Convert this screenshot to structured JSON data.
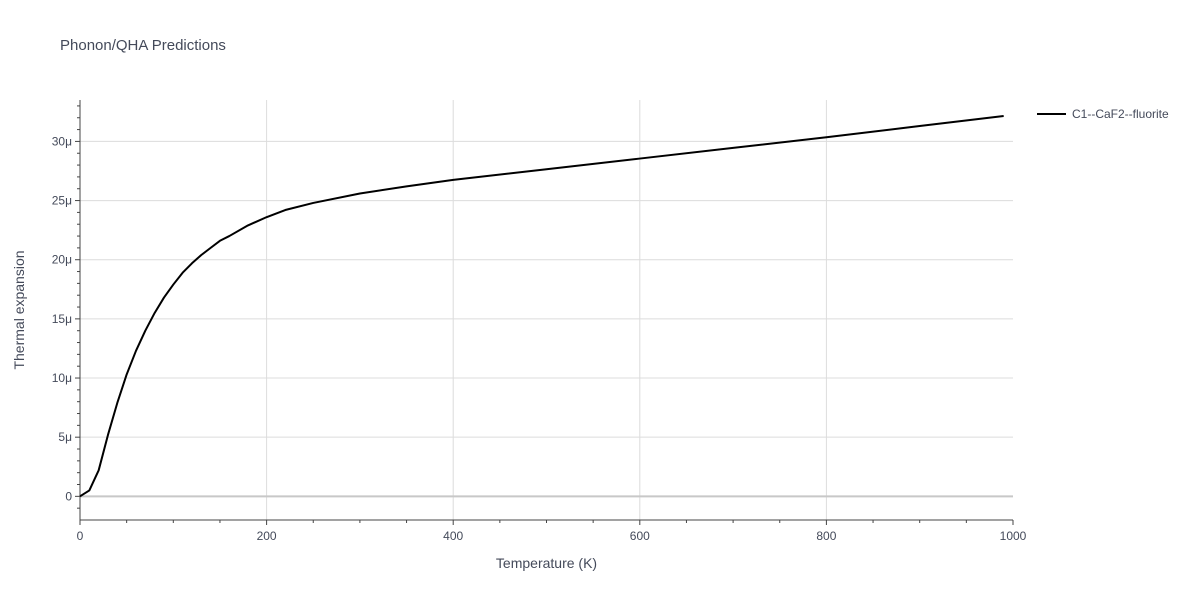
{
  "chart_data": {
    "type": "line",
    "title": "Phonon/QHA Predictions",
    "xlabel": "Temperature (K)",
    "ylabel": "Thermal expansion",
    "xlim": [
      0,
      1000
    ],
    "ylim": [
      -2e-06,
      3.35e-05
    ],
    "x_ticks": [
      0,
      200,
      400,
      600,
      800,
      1000
    ],
    "x_tick_labels": [
      "0",
      "200",
      "400",
      "600",
      "800",
      "1000"
    ],
    "y_ticks": [
      0,
      5e-06,
      1e-05,
      1.5e-05,
      2e-05,
      2.5e-05,
      3e-05
    ],
    "y_tick_labels": [
      "0",
      "5μ",
      "10μ",
      "15μ",
      "20μ",
      "25μ",
      "30μ"
    ],
    "grid": true,
    "legend_position": "top-right",
    "series": [
      {
        "name": "C1--CaF2--fluorite",
        "color": "#000000",
        "x": [
          0,
          10,
          20,
          30,
          40,
          50,
          60,
          70,
          80,
          90,
          100,
          110,
          120,
          130,
          140,
          150,
          160,
          180,
          200,
          220,
          250,
          300,
          350,
          400,
          500,
          600,
          700,
          800,
          900,
          990
        ],
        "y": [
          0.0,
          5e-07,
          2.2e-06,
          5.2e-06,
          7.9e-06,
          1.03e-05,
          1.23e-05,
          1.4e-05,
          1.55e-05,
          1.68e-05,
          1.79e-05,
          1.89e-05,
          1.97e-05,
          2.04e-05,
          2.1e-05,
          2.16e-05,
          2.2e-05,
          2.29e-05,
          2.36e-05,
          2.42e-05,
          2.48e-05,
          2.56e-05,
          2.62e-05,
          2.675e-05,
          2.765e-05,
          2.855e-05,
          2.945e-05,
          3.035e-05,
          3.13e-05,
          3.215e-05
        ]
      }
    ]
  }
}
